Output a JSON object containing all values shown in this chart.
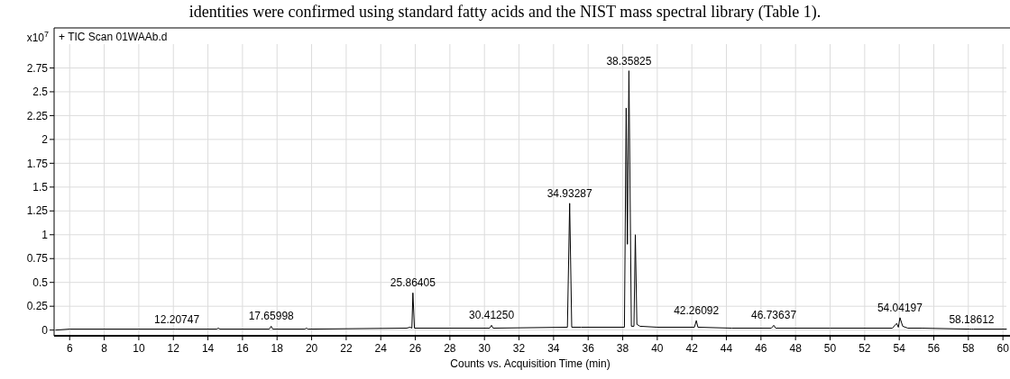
{
  "chart_data": {
    "type": "line",
    "title": "+ TIC Scan 01WAAb.d",
    "xlabel": "Counts vs. Acquisition Time (min)",
    "ylabel": "x10$^{7}$",
    "annotations": [
      "identities were confirmed using standard fatty acids and the NIST mass spectral library (Table 1).",
      {
        "text": "12.20747",
        "x": 12.2,
        "y": 0.01
      },
      {
        "text": "17.65998",
        "x": 17.66,
        "y": 0.04
      },
      {
        "text": "25.86405",
        "x": 25.86,
        "y": 0.39
      },
      {
        "text": "30.41250",
        "x": 30.41,
        "y": 0.05
      },
      {
        "text": "34.93287",
        "x": 34.93,
        "y": 1.33
      },
      {
        "text": "38.35825",
        "x": 38.36,
        "y": 2.72
      },
      {
        "text": "42.26092",
        "x": 42.26,
        "y": 0.1
      },
      {
        "text": "46.73637",
        "x": 46.74,
        "y": 0.05
      },
      {
        "text": "54.04197",
        "x": 54.04,
        "y": 0.13
      },
      {
        "text": "58.18612",
        "x": 58.19,
        "y": 0.01
      }
    ],
    "series": [
      {
        "color": "#000000",
        "x": [
          5.2,
          6,
          10,
          12.1,
          12.2,
          12.3,
          14.5,
          14.6,
          14.7,
          17.55,
          17.66,
          17.75,
          19.6,
          19.7,
          19.8,
          25.5,
          25.7,
          25.8,
          25.86,
          25.95,
          28,
          30.3,
          30.41,
          30.5,
          34.8,
          34.93,
          35.05,
          35.6,
          38.1,
          38.2,
          38.27,
          38.36,
          38.5,
          38.65,
          38.73,
          38.82,
          39,
          40,
          42.15,
          42.26,
          42.35,
          44.3,
          46.6,
          46.74,
          46.85,
          50,
          53.6,
          53.85,
          53.95,
          54.04,
          54.2,
          54.5,
          55.3,
          58.1,
          58.19,
          58.3,
          60.2
        ],
        "values": [
          0,
          0.01,
          0.01,
          0.01,
          0.01,
          0.01,
          0.01,
          0.02,
          0.01,
          0.01,
          0.04,
          0.01,
          0.01,
          0.02,
          0.01,
          0.02,
          0.03,
          0.02,
          0.39,
          0.02,
          0.02,
          0.02,
          0.05,
          0.02,
          0.03,
          1.33,
          0.03,
          0.03,
          0.03,
          2.33,
          0.9,
          2.72,
          0.04,
          0.04,
          1.0,
          0.06,
          0.04,
          0.03,
          0.03,
          0.1,
          0.03,
          0.02,
          0.02,
          0.05,
          0.02,
          0.02,
          0.02,
          0.07,
          0.03,
          0.13,
          0.04,
          0.02,
          0.02,
          0.01,
          0.01,
          0.01,
          0.01
        ]
      }
    ],
    "xlim": [
      5.1,
      60.2
    ],
    "xticks": [
      6,
      8,
      10,
      12,
      14,
      16,
      18,
      20,
      22,
      24,
      26,
      28,
      30,
      32,
      34,
      36,
      38,
      40,
      42,
      44,
      46,
      48,
      50,
      52,
      54,
      56,
      58,
      60
    ],
    "ylim": [
      -0.06,
      3.17
    ],
    "yticks": [
      0,
      0.25,
      0.5,
      0.75,
      1,
      1.25,
      1.5,
      1.75,
      2,
      2.25,
      2.5,
      2.75
    ],
    "grid": true,
    "line_style": "solid",
    "marker": "none"
  }
}
